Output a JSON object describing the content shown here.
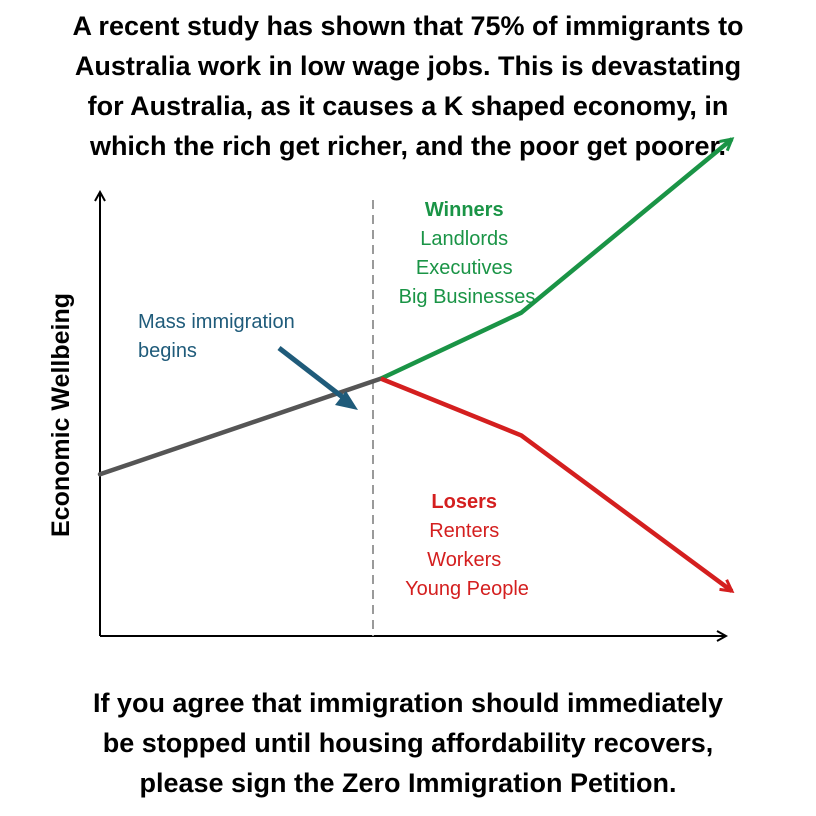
{
  "headline": [
    "A recent study has shown that 75% of immigrants to",
    "Australia work in low wage jobs. This is devastating",
    "for Australia, as it causes a K shaped economy, in",
    "which the rich get richer, and the poor get poorer."
  ],
  "footer": [
    "If you agree that immigration should immediately",
    "be stopped until housing affordability recovers,",
    "please sign the Zero Immigration Petition."
  ],
  "chart_data": {
    "type": "line",
    "xlabel": "",
    "ylabel": "Economic Wellbeing",
    "grid": false,
    "x_ticks_shown": false,
    "y_ticks_shown": false,
    "divider_line": {
      "style": "dashed",
      "color": "#999999",
      "at": "split point"
    },
    "annotation": {
      "lines": [
        "Mass immigration",
        "begins"
      ],
      "color": "#1f5b7a",
      "arrow": "points to split point"
    },
    "series": [
      {
        "role": "before",
        "color": "#555555",
        "points": [
          [
            0,
            0
          ],
          [
            10,
            3.2
          ]
        ]
      },
      {
        "role": "winners",
        "color": "#1a9446",
        "points": [
          [
            10,
            3.2
          ],
          [
            15,
            5.4
          ],
          [
            22.5,
            11.2
          ]
        ],
        "label_lines": [
          "Winners",
          "Landlords",
          "Executives",
          "Big Businesses"
        ]
      },
      {
        "role": "losers",
        "color": "#d41f1f",
        "points": [
          [
            10,
            3.2
          ],
          [
            15,
            1.3
          ],
          [
            22.5,
            -3.9
          ]
        ],
        "label_lines": [
          "Losers",
          "Renters",
          "Workers",
          "Young People"
        ]
      }
    ],
    "xlim": [
      0,
      23.5
    ],
    "ylim": [
      -5.4,
      10.1
    ]
  }
}
